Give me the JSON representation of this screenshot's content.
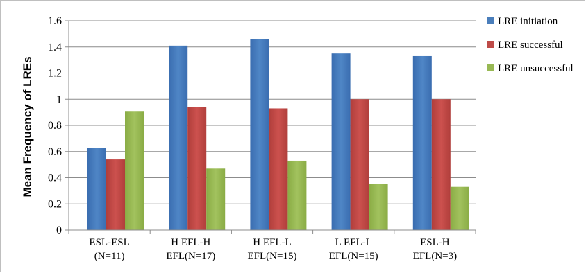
{
  "chart_data": {
    "type": "bar",
    "title": "",
    "xlabel": "",
    "ylabel": "Mean Frequency of LREs",
    "ylim": [
      0,
      1.6
    ],
    "yticks": [
      "0",
      "0.2",
      "0.4",
      "0.6",
      "0.8",
      "1",
      "1.2",
      "1.4",
      "1.6"
    ],
    "grid": true,
    "legend_position": "right",
    "categories": [
      [
        "ESL-ESL",
        "(N=11)"
      ],
      [
        "H EFL-H",
        "EFL(N=17)"
      ],
      [
        "H EFL-L",
        "EFL(N=15)"
      ],
      [
        "L EFL-L",
        "EFL(N=15)"
      ],
      [
        "ESL-H",
        "EFL(N=3)"
      ]
    ],
    "series": [
      {
        "name": "LRE initiation",
        "color": "#4a7ebb",
        "values": [
          0.63,
          1.41,
          1.46,
          1.35,
          1.33
        ]
      },
      {
        "name": "LRE successful",
        "color": "#be4b48",
        "values": [
          0.54,
          0.94,
          0.93,
          1.0,
          1.0
        ]
      },
      {
        "name": "LRE unsuccessful",
        "color": "#98b954",
        "values": [
          0.91,
          0.47,
          0.53,
          0.35,
          0.33
        ]
      }
    ]
  }
}
